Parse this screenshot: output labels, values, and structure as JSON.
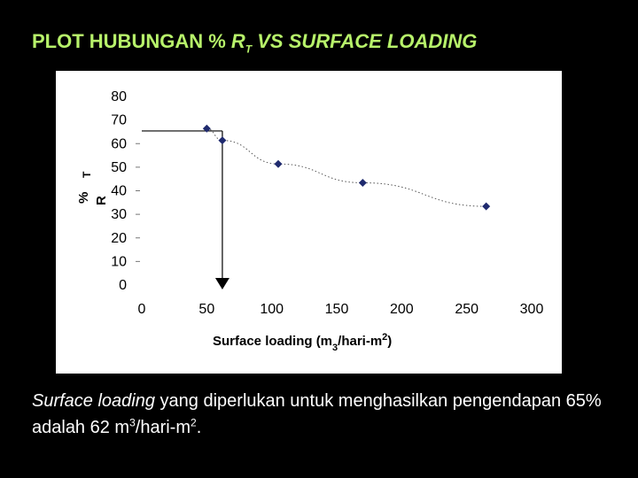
{
  "slide": {
    "title_prefix": "PLOT HUBUNGAN % ",
    "title_var": "R",
    "title_var_sub": "T",
    "title_suffix": " VS SURFACE LOADING"
  },
  "caption": {
    "part1": "Surface loading",
    "part2": " yang diperlukan untuk menghasilkan pengendapan 65% adalah 62 m",
    "sup1": "3",
    "part3": "/hari-m",
    "sup2": "2",
    "part4": "."
  },
  "chart_data": {
    "type": "scatter",
    "x": [
      50,
      62,
      105,
      170,
      265
    ],
    "y": [
      66,
      61,
      51,
      43,
      33
    ],
    "xlim": [
      0,
      300
    ],
    "ylim": [
      0,
      80
    ],
    "xticks": [
      "0",
      "50",
      "100",
      "150",
      "200",
      "250",
      "300"
    ],
    "yticks": [
      "0",
      "10",
      "20",
      "30",
      "40",
      "50",
      "60",
      "70",
      "80"
    ],
    "ylabel_parts": [
      "%",
      "R",
      "T"
    ],
    "xlabel_parts": [
      "Surface loading (m",
      "3",
      "/hari-m",
      "2",
      ")"
    ],
    "trendline": true,
    "annotation": {
      "target_y": 65,
      "result_x": 62
    },
    "colors": {
      "marker": "#1f2a6e",
      "trend": "#555555",
      "guide": "#000000"
    }
  }
}
